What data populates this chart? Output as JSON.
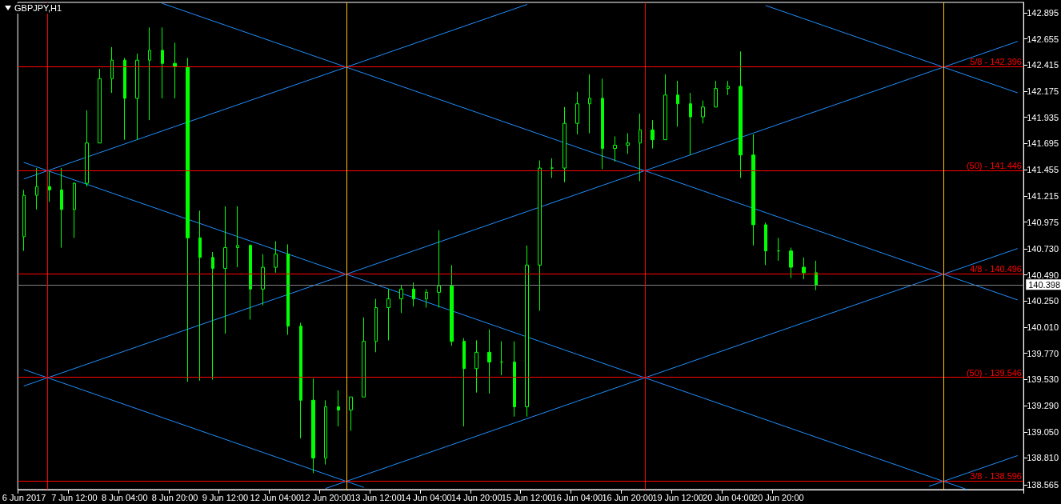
{
  "chart_data": {
    "type": "candlestick",
    "title": "GBPJPY,H1",
    "color": "#00ff00",
    "categories": [
      "6 Jun 2017",
      null,
      null,
      null,
      "7 Jun 12:00",
      null,
      null,
      null,
      "8 Jun 04:00",
      null,
      null,
      null,
      "8 Jun 20:00",
      null,
      null,
      null,
      "9 Jun 12:00",
      null,
      null,
      null,
      "12 Jun 04:00",
      null,
      null,
      null,
      "12 Jun 20:00",
      null,
      null,
      null,
      "13 Jun 12:00",
      null,
      null,
      null,
      "14 Jun 04:00",
      null,
      null,
      null,
      "14 Jun 20:00",
      null,
      null,
      null,
      "15 Jun 12:00",
      null,
      null,
      null,
      "16 Jun 04:00",
      null,
      null,
      null,
      "16 Jun 20:00",
      null,
      null,
      null,
      "19 Jun 12:00",
      null,
      null,
      null,
      "20 Jun 04:00",
      null,
      null,
      null,
      "20 Jun 20:00",
      null,
      null,
      null,
      null,
      null,
      null,
      null,
      null,
      null,
      null,
      null,
      null,
      null,
      null,
      null,
      null,
      null,
      null,
      null
    ],
    "ohlc": [
      [
        140.84,
        141.27,
        140.71,
        141.22
      ],
      [
        141.22,
        141.47,
        141.09,
        141.3
      ],
      [
        141.3,
        141.44,
        141.16,
        141.27
      ],
      [
        141.27,
        141.47,
        140.74,
        141.09
      ],
      [
        141.09,
        141.34,
        140.83,
        141.33
      ],
      [
        141.33,
        142.0,
        141.3,
        141.7
      ],
      [
        141.7,
        142.38,
        141.7,
        142.29
      ],
      [
        142.29,
        142.58,
        142.16,
        142.46
      ],
      [
        142.46,
        142.48,
        141.73,
        142.11
      ],
      [
        142.11,
        142.52,
        141.73,
        142.46
      ],
      [
        142.46,
        142.76,
        141.91,
        142.55
      ],
      [
        142.55,
        142.76,
        142.11,
        142.43
      ],
      [
        142.43,
        142.62,
        142.11,
        142.4
      ],
      [
        142.4,
        142.48,
        139.51,
        140.83
      ],
      [
        140.83,
        141.08,
        139.52,
        140.65
      ],
      [
        140.65,
        140.7,
        139.53,
        140.55
      ],
      [
        140.55,
        141.12,
        139.95,
        140.74
      ],
      [
        140.74,
        141.12,
        140.56,
        140.76
      ],
      [
        140.76,
        140.77,
        140.08,
        140.36
      ],
      [
        140.36,
        140.68,
        140.21,
        140.56
      ],
      [
        140.56,
        140.8,
        140.51,
        140.68
      ],
      [
        140.68,
        140.77,
        139.94,
        140.02
      ],
      [
        140.02,
        140.05,
        138.99,
        139.34
      ],
      [
        139.34,
        139.54,
        138.67,
        138.81
      ],
      [
        138.81,
        139.34,
        138.75,
        139.28
      ],
      [
        139.28,
        139.43,
        139.1,
        139.25
      ],
      [
        139.25,
        139.37,
        139.06,
        139.37
      ],
      [
        139.37,
        140.1,
        139.37,
        139.88
      ],
      [
        139.88,
        140.27,
        139.78,
        140.19
      ],
      [
        140.19,
        140.36,
        139.89,
        140.27
      ],
      [
        140.27,
        140.4,
        140.14,
        140.36
      ],
      [
        140.36,
        140.42,
        140.2,
        140.27
      ],
      [
        140.27,
        140.36,
        140.19,
        140.33
      ],
      [
        140.33,
        140.9,
        140.19,
        140.39
      ],
      [
        140.39,
        140.58,
        139.84,
        139.88
      ],
      [
        139.88,
        139.91,
        139.1,
        139.63
      ],
      [
        139.63,
        139.89,
        139.41,
        139.78
      ],
      [
        139.78,
        139.99,
        139.4,
        139.69
      ],
      [
        139.69,
        139.88,
        139.57,
        139.69
      ],
      [
        139.69,
        139.88,
        139.19,
        139.28
      ],
      [
        139.28,
        140.76,
        139.19,
        140.58
      ],
      [
        140.58,
        141.54,
        140.16,
        141.47
      ],
      [
        141.47,
        141.56,
        141.38,
        141.47
      ],
      [
        141.47,
        142.03,
        141.34,
        141.88
      ],
      [
        141.88,
        142.17,
        141.78,
        142.06
      ],
      [
        142.06,
        142.33,
        141.79,
        142.11
      ],
      [
        142.11,
        142.29,
        141.46,
        141.65
      ],
      [
        141.65,
        141.76,
        141.53,
        141.68
      ],
      [
        141.68,
        141.79,
        141.6,
        141.7
      ],
      [
        141.7,
        141.97,
        141.35,
        141.82
      ],
      [
        141.82,
        141.91,
        141.65,
        141.73
      ],
      [
        141.73,
        142.33,
        141.73,
        142.14
      ],
      [
        142.14,
        142.27,
        141.85,
        142.06
      ],
      [
        142.06,
        142.16,
        141.59,
        141.94
      ],
      [
        141.94,
        142.09,
        141.88,
        142.03
      ],
      [
        142.03,
        142.27,
        142.03,
        142.2
      ],
      [
        142.2,
        142.27,
        142.14,
        142.22
      ],
      [
        142.22,
        142.54,
        141.38,
        141.59
      ],
      [
        141.59,
        141.78,
        140.76,
        140.95
      ],
      [
        140.95,
        140.97,
        140.58,
        140.71
      ],
      [
        140.71,
        140.83,
        140.62,
        140.71
      ],
      [
        140.71,
        140.74,
        140.46,
        140.56
      ],
      [
        140.56,
        140.65,
        140.45,
        140.51
      ],
      [
        140.51,
        140.62,
        140.35,
        140.398
      ],
      null,
      null,
      null,
      null,
      null,
      null,
      null,
      null,
      null,
      null,
      null,
      null,
      null,
      null,
      null,
      null
    ],
    "series": [
      {
        "type": "line",
        "color": "#1e90ff",
        "values": [
          null,
          null,
          null,
          null,
          null,
          null,
          null,
          null,
          null,
          null,
          null,
          142.981,
          142.941,
          142.901,
          142.861,
          142.821,
          142.781,
          142.741,
          142.701,
          142.661,
          142.621,
          142.581,
          142.541,
          142.501,
          142.461,
          142.421,
          142.381,
          142.341,
          142.301,
          142.261,
          142.221,
          142.181,
          142.141,
          142.101,
          142.061,
          142.021,
          141.981,
          141.941,
          141.901,
          141.861,
          141.821,
          141.781,
          141.741,
          141.701,
          141.661,
          141.621,
          141.581,
          141.541,
          141.501,
          141.461,
          141.421,
          141.381,
          141.341,
          141.301,
          141.261,
          141.221,
          141.181,
          141.141,
          141.101,
          141.061,
          141.021,
          140.981,
          140.941,
          140.901,
          140.861,
          140.821,
          140.781,
          140.741,
          140.701,
          140.661,
          140.621,
          140.581,
          140.541,
          140.501,
          140.461,
          140.421,
          140.381,
          140.341,
          140.301,
          140.261
        ]
      },
      {
        "type": "line",
        "color": "#1e90ff",
        "values": [
          141.521,
          141.481,
          141.441,
          141.401,
          141.361,
          141.321,
          141.281,
          141.241,
          141.201,
          141.161,
          141.121,
          141.081,
          141.041,
          141.001,
          140.961,
          140.921,
          140.881,
          140.841,
          140.801,
          140.761,
          140.721,
          140.681,
          140.641,
          140.601,
          140.561,
          140.521,
          140.481,
          140.441,
          140.401,
          140.361,
          140.321,
          140.281,
          140.241,
          140.201,
          140.161,
          140.121,
          140.081,
          140.041,
          140.001,
          139.961,
          139.921,
          139.881,
          139.841,
          139.801,
          139.761,
          139.721,
          139.681,
          139.641,
          139.601,
          139.561,
          139.521,
          139.481,
          139.441,
          139.401,
          139.361,
          139.321,
          139.281,
          139.241,
          139.201,
          139.161,
          139.121,
          139.081,
          139.041,
          139.001,
          138.961,
          138.921,
          138.881,
          138.841,
          138.801,
          138.761,
          138.721,
          138.681,
          138.641,
          138.601,
          138.561,
          138.521,
          null,
          null,
          null,
          null
        ]
      },
      {
        "type": "line",
        "color": "#1e90ff",
        "values": [
          139.621,
          139.581,
          139.541,
          139.501,
          139.461,
          139.421,
          139.381,
          139.341,
          139.301,
          139.261,
          139.221,
          139.181,
          139.141,
          139.101,
          139.061,
          139.021,
          138.981,
          138.941,
          138.901,
          138.861,
          138.821,
          138.781,
          138.741,
          138.701,
          138.661,
          138.621,
          138.581,
          138.541,
          null,
          null,
          null,
          null,
          null,
          null,
          null,
          null,
          null,
          null,
          null,
          null,
          null,
          null,
          null,
          null,
          null,
          null,
          null,
          null,
          null,
          null,
          null,
          null,
          null,
          null,
          null,
          null,
          null,
          null,
          null,
          null,
          null,
          null,
          null,
          null,
          null,
          null,
          null,
          null,
          null,
          null,
          null,
          null,
          null,
          null,
          null,
          null,
          null,
          null,
          null,
          null
        ]
      },
      {
        "type": "line",
        "color": "#1e90ff",
        "values": [
          null,
          null,
          null,
          null,
          null,
          null,
          null,
          null,
          null,
          null,
          null,
          null,
          null,
          null,
          null,
          null,
          null,
          null,
          null,
          null,
          null,
          null,
          null,
          null,
          null,
          null,
          null,
          null,
          null,
          null,
          null,
          null,
          null,
          null,
          null,
          null,
          null,
          null,
          null,
          null,
          null,
          null,
          null,
          null,
          null,
          null,
          null,
          null,
          null,
          null,
          null,
          null,
          null,
          null,
          null,
          null,
          null,
          null,
          null,
          142.961,
          142.921,
          142.881,
          142.841,
          142.801,
          142.761,
          142.721,
          142.681,
          142.641,
          142.601,
          142.561,
          142.521,
          142.481,
          142.441,
          142.401,
          142.361,
          142.321,
          142.281,
          142.241,
          142.201,
          142.161
        ]
      },
      {
        "type": "line",
        "color": "#1e90ff",
        "values": [
          141.371,
          141.411,
          141.451,
          141.491,
          141.531,
          141.571,
          141.611,
          141.651,
          141.691,
          141.731,
          141.771,
          141.811,
          141.851,
          141.891,
          141.931,
          141.971,
          142.011,
          142.051,
          142.091,
          142.131,
          142.171,
          142.211,
          142.251,
          142.291,
          142.331,
          142.371,
          142.411,
          142.451,
          142.491,
          142.531,
          142.571,
          142.611,
          142.651,
          142.691,
          142.731,
          142.771,
          142.811,
          142.851,
          142.891,
          142.931,
          142.971,
          null,
          null,
          null,
          null,
          null,
          null,
          null,
          null,
          null,
          null,
          null,
          null,
          null,
          null,
          null,
          null,
          null,
          null,
          null,
          null,
          null,
          null,
          null,
          null,
          null,
          null,
          null,
          null,
          null,
          null,
          null,
          null,
          null,
          null,
          null,
          null,
          null,
          null,
          null
        ]
      },
      {
        "type": "line",
        "color": "#1e90ff",
        "values": [
          139.471,
          139.511,
          139.551,
          139.591,
          139.631,
          139.671,
          139.711,
          139.751,
          139.791,
          139.831,
          139.871,
          139.911,
          139.951,
          139.991,
          140.031,
          140.071,
          140.111,
          140.151,
          140.191,
          140.231,
          140.271,
          140.311,
          140.351,
          140.391,
          140.431,
          140.471,
          140.511,
          140.551,
          140.591,
          140.631,
          140.671,
          140.711,
          140.751,
          140.791,
          140.831,
          140.871,
          140.911,
          140.951,
          140.991,
          141.031,
          141.071,
          141.111,
          141.151,
          141.191,
          141.231,
          141.271,
          141.311,
          141.351,
          141.391,
          141.431,
          141.471,
          141.511,
          141.551,
          141.591,
          141.631,
          141.671,
          141.711,
          141.751,
          141.791,
          141.831,
          141.871,
          141.911,
          141.951,
          141.991,
          142.031,
          142.071,
          142.111,
          142.151,
          142.191,
          142.231,
          142.271,
          142.311,
          142.351,
          142.391,
          142.431,
          142.471,
          142.511,
          142.551,
          142.591,
          142.631
        ]
      },
      {
        "type": "line",
        "color": "#1e90ff",
        "values": [
          null,
          null,
          null,
          null,
          null,
          null,
          null,
          null,
          null,
          null,
          null,
          null,
          null,
          null,
          null,
          null,
          null,
          null,
          null,
          null,
          null,
          null,
          null,
          null,
          138.531,
          138.571,
          138.611,
          138.651,
          138.691,
          138.731,
          138.771,
          138.811,
          138.851,
          138.891,
          138.931,
          138.971,
          139.011,
          139.051,
          139.091,
          139.131,
          139.171,
          139.211,
          139.251,
          139.291,
          139.331,
          139.371,
          139.411,
          139.451,
          139.491,
          139.531,
          139.571,
          139.611,
          139.651,
          139.691,
          139.731,
          139.771,
          139.811,
          139.851,
          139.891,
          139.931,
          139.971,
          140.011,
          140.051,
          140.091,
          140.131,
          140.171,
          140.211,
          140.251,
          140.291,
          140.331,
          140.371,
          140.411,
          140.451,
          140.491,
          140.531,
          140.571,
          140.611,
          140.651,
          140.691,
          140.731
        ]
      },
      {
        "type": "line",
        "color": "#1e90ff",
        "values": [
          null,
          null,
          null,
          null,
          null,
          null,
          null,
          null,
          null,
          null,
          null,
          null,
          null,
          null,
          null,
          null,
          null,
          null,
          null,
          null,
          null,
          null,
          null,
          null,
          null,
          null,
          null,
          null,
          null,
          null,
          null,
          null,
          null,
          null,
          null,
          null,
          null,
          null,
          null,
          null,
          null,
          null,
          null,
          null,
          null,
          null,
          null,
          null,
          null,
          null,
          null,
          null,
          null,
          null,
          null,
          null,
          null,
          null,
          null,
          null,
          null,
          null,
          null,
          null,
          null,
          null,
          null,
          null,
          null,
          null,
          null,
          null,
          138.551,
          138.591,
          138.631,
          138.671,
          138.711,
          138.751,
          138.791,
          138.831
        ]
      }
    ],
    "ref_lines": [
      {
        "axis": "y",
        "value": 142.396,
        "color": "#ff0000"
      },
      {
        "axis": "y",
        "value": 141.446,
        "color": "#ff0000"
      },
      {
        "axis": "y",
        "value": 140.496,
        "color": "#ff0000"
      },
      {
        "axis": "y",
        "value": 139.546,
        "color": "#ff0000"
      },
      {
        "axis": "y",
        "value": 138.596,
        "color": "#ff0000"
      },
      {
        "axis": "y",
        "value": 140.398,
        "label": "140.398",
        "color": "#808080"
      }
    ],
    "annotations": [
      {
        "text": "5/8 - 142.396",
        "y": 142.396
      },
      {
        "text": "(50) - 141.446",
        "y": 141.446
      },
      {
        "text": "4/8 - 140.496",
        "y": 140.496
      },
      {
        "text": "(50) - 139.546",
        "y": 139.546
      },
      {
        "text": "3/8 - 138.596",
        "y": 138.596
      }
    ],
    "ylim": [
      138.52,
      142.99
    ],
    "yticks": [
      142.895,
      142.655,
      142.415,
      142.175,
      141.935,
      141.695,
      141.455,
      141.215,
      140.975,
      {
        "value": 140.73,
        "label": "140.730"
      },
      {
        "value": 140.49,
        "label": "140.490"
      },
      {
        "value": 140.25,
        "label": "140.250"
      },
      {
        "value": 140.01,
        "label": "140.010"
      },
      {
        "value": 139.77,
        "label": "139.770"
      },
      {
        "value": 139.53,
        "label": "139.530"
      },
      {
        "value": 139.29,
        "label": "139.290"
      },
      {
        "value": 139.05,
        "label": "139.050"
      },
      {
        "value": 138.81,
        "label": "138.810"
      },
      138.565
    ],
    "grid": false
  }
}
